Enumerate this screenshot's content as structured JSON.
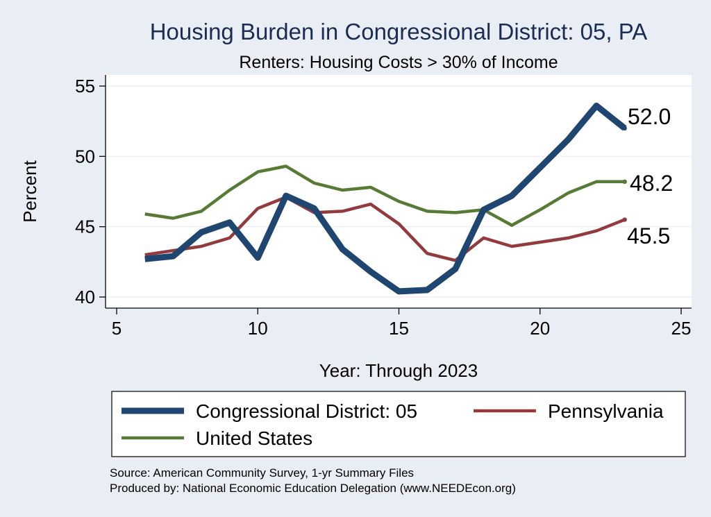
{
  "chart_data": {
    "type": "line",
    "title": "Housing Burden in Congressional District:  05, PA",
    "subtitle": "Renters: Housing Costs > 30% of Income",
    "xlabel": "Year: Through 2023",
    "ylabel": "Percent",
    "xlim": [
      5,
      25
    ],
    "ylim": [
      40,
      55
    ],
    "xticks": [
      5,
      10,
      15,
      20,
      25
    ],
    "yticks": [
      40,
      45,
      50,
      55
    ],
    "grid": true,
    "legend_position": "bottom",
    "series": [
      {
        "name": "Congressional District:  05",
        "color": "#1f4571",
        "x": [
          6,
          7,
          8,
          9,
          10,
          11,
          12,
          13,
          14,
          15,
          16,
          17,
          18,
          19,
          20,
          21,
          22,
          23
        ],
        "y": [
          42.7,
          42.9,
          44.6,
          45.3,
          42.8,
          47.2,
          46.3,
          43.4,
          41.8,
          40.4,
          40.5,
          42.0,
          46.2,
          47.2,
          49.2,
          51.2,
          53.6,
          52.0
        ],
        "end_label": "52.0"
      },
      {
        "name": "Pennsylvania",
        "color": "#923a3e",
        "x": [
          6,
          7,
          8,
          9,
          10,
          11,
          12,
          13,
          14,
          15,
          16,
          17,
          18,
          19,
          20,
          21,
          22,
          23
        ],
        "y": [
          43.0,
          43.3,
          43.6,
          44.2,
          46.3,
          47.1,
          46.0,
          46.1,
          46.6,
          45.2,
          43.1,
          42.6,
          44.2,
          43.6,
          43.9,
          44.2,
          44.7,
          45.5
        ],
        "end_label": "45.5"
      },
      {
        "name": "United States",
        "color": "#577a35",
        "x": [
          6,
          7,
          8,
          9,
          10,
          11,
          12,
          13,
          14,
          15,
          16,
          17,
          18,
          19,
          20,
          21,
          22,
          23
        ],
        "y": [
          45.9,
          45.6,
          46.1,
          47.6,
          48.9,
          49.3,
          48.1,
          47.6,
          47.8,
          46.8,
          46.1,
          46.0,
          46.2,
          45.1,
          46.2,
          47.4,
          48.2,
          48.2
        ],
        "end_label": "48.2"
      }
    ],
    "notes": [
      "Source: American Community Survey, 1-yr Summary Files",
      "Produced by: National Economic Education Delegation (www.NEEDEcon.org)"
    ]
  }
}
